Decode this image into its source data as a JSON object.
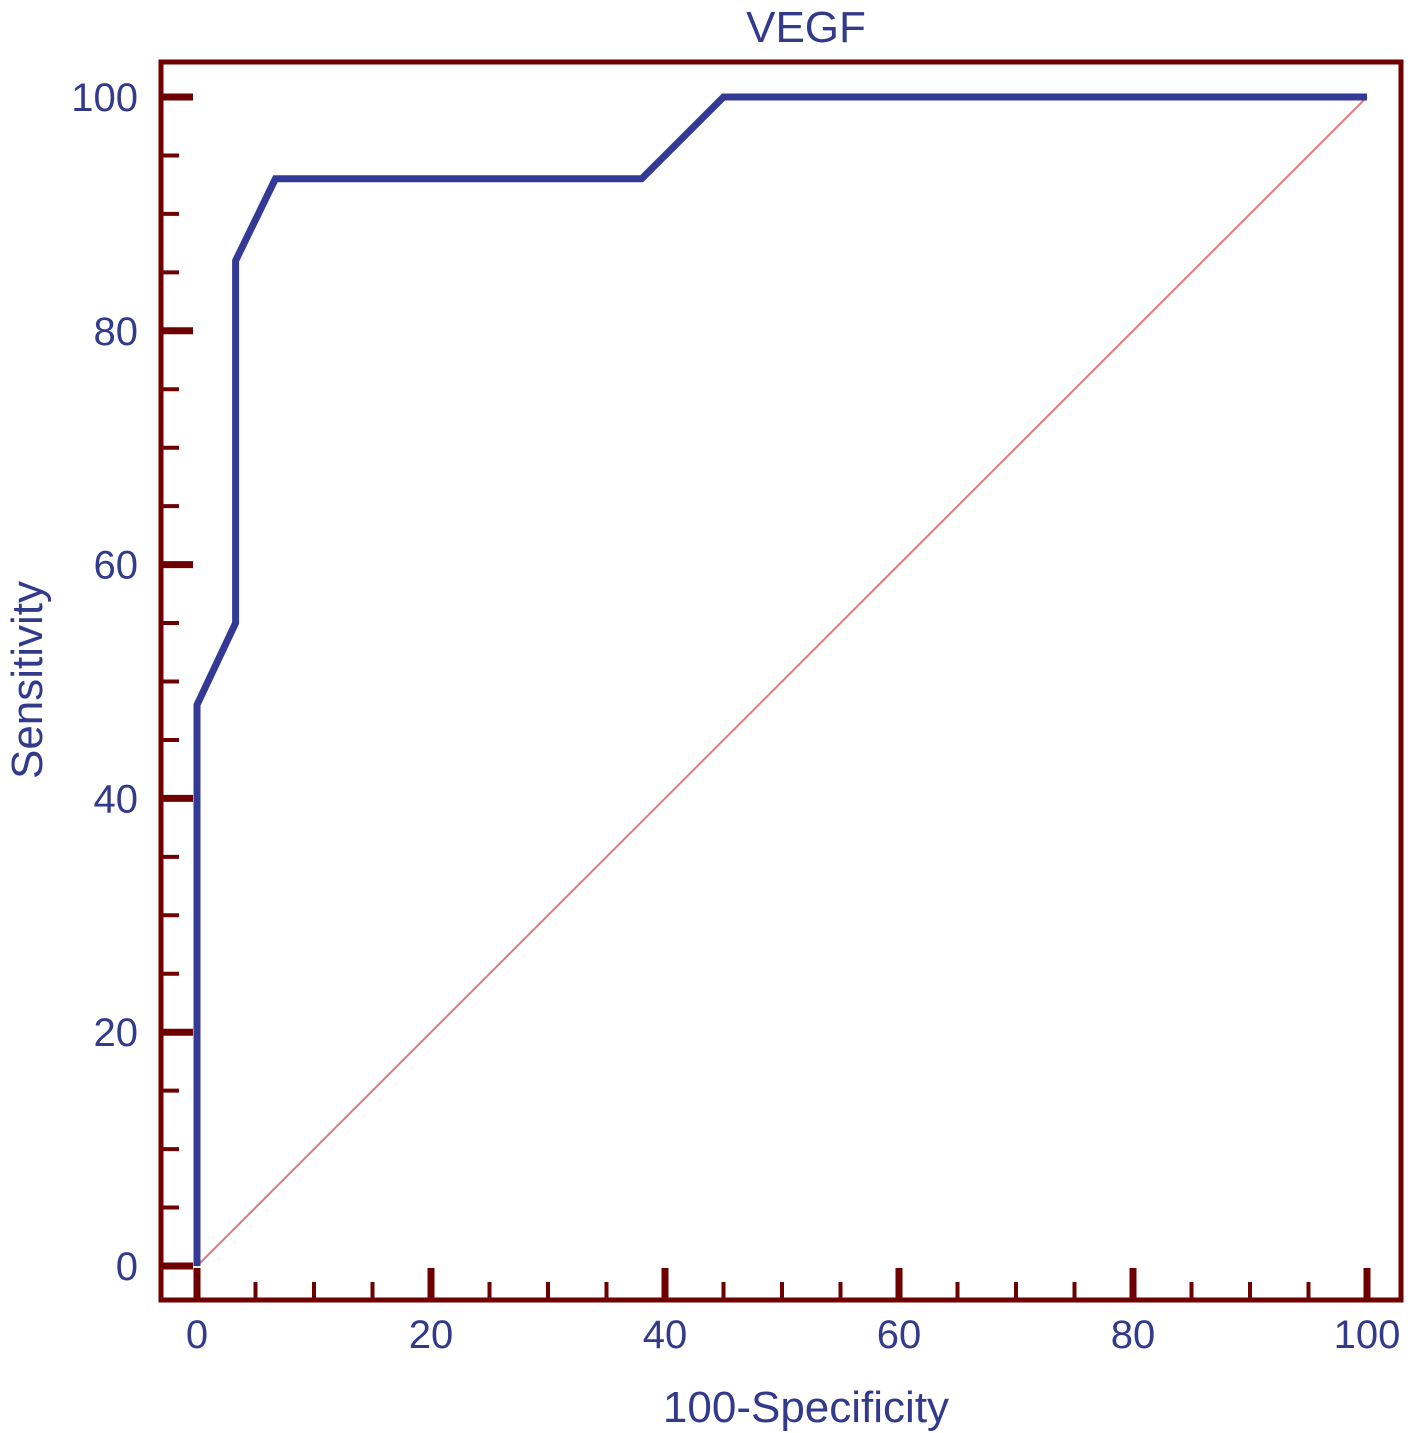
{
  "chart_data": {
    "type": "line",
    "title": "VEGF",
    "xlabel": "100-Specificity",
    "ylabel": "Sensitivity",
    "xlim": [
      0,
      100
    ],
    "ylim": [
      0,
      100
    ],
    "x_ticks": [
      "0",
      "20",
      "40",
      "60",
      "80",
      "100"
    ],
    "y_ticks": [
      "0",
      "20",
      "40",
      "60",
      "80",
      "100"
    ],
    "x_tick_values": [
      0,
      20,
      40,
      60,
      80,
      100
    ],
    "y_tick_values": [
      0,
      20,
      40,
      60,
      80,
      100
    ],
    "minor_tick_step": 5,
    "grid": false,
    "series": [
      {
        "role": "roc-curve",
        "x": [
          0,
          0,
          3.3,
          3.3,
          6.7,
          38,
          45,
          100
        ],
        "y": [
          0,
          48,
          55,
          86,
          93,
          93,
          100,
          100
        ]
      },
      {
        "role": "reference-diagonal",
        "x": [
          0,
          100
        ],
        "y": [
          0,
          100
        ]
      }
    ],
    "colors": {
      "roc": "#323a96",
      "diagonal": "#e07a7a",
      "frame": "#6e0000",
      "text": "#323a8c"
    }
  }
}
